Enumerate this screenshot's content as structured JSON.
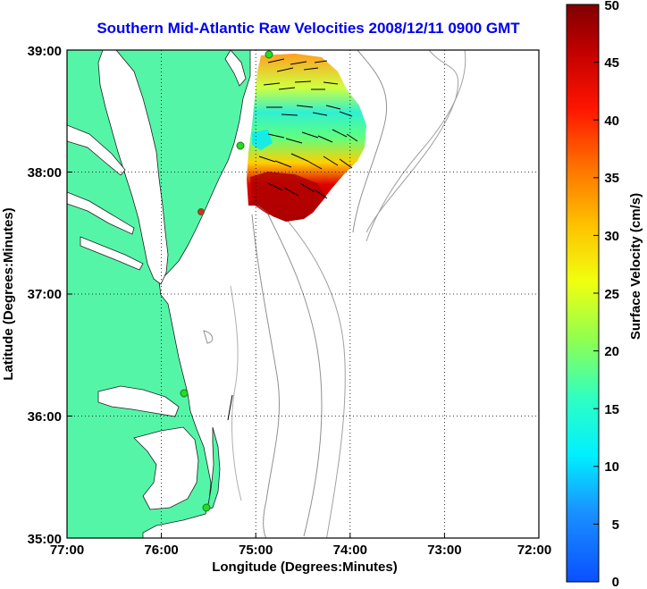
{
  "title": "Southern Mid-Atlantic Raw Velocities 2008/12/11 0900 GMT",
  "x_axis": {
    "label": "Longitude (Degrees:Minutes)",
    "ticks": [
      "77:00",
      "76:00",
      "75:00",
      "74:00",
      "73:00",
      "72:00"
    ]
  },
  "y_axis": {
    "label": "Latitude (Degrees:Minutes)",
    "ticks": [
      "39:00",
      "38:00",
      "37:00",
      "36:00",
      "35:00"
    ]
  },
  "colorbar": {
    "label": "Surface Velocity (cm/s)",
    "ticks": [
      "50",
      "45",
      "40",
      "35",
      "30",
      "25",
      "20",
      "15",
      "10",
      "5",
      "0"
    ],
    "min": 0,
    "max": 50
  },
  "colors": {
    "land": "#55f5a8",
    "water": "#ffffff",
    "title": "#0000ee",
    "bathymetry": "#909090",
    "station": "#22dd22"
  }
}
